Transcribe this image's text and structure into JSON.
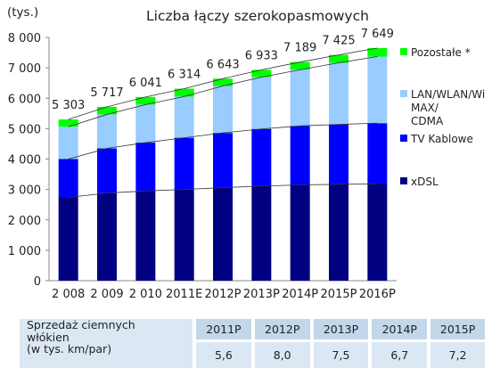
{
  "chart_data": {
    "type": "bar",
    "title": "Liczba łączy szerokopasmowych",
    "ylabel": "(tys.)",
    "ylim": [
      0,
      8000
    ],
    "yticks": [
      "0",
      "1 000",
      "2 000",
      "3 000",
      "4 000",
      "5 000",
      "6 000",
      "7 000",
      "8 000"
    ],
    "categories": [
      "2 008",
      "2 009",
      "2 010",
      "2011E",
      "2012P",
      "2013P",
      "2014P",
      "2015P",
      "2016P"
    ],
    "totals": [
      5303,
      5717,
      6041,
      6314,
      6643,
      6933,
      7189,
      7425,
      7649
    ],
    "total_labels": [
      "5 303",
      "5 717",
      "6 041",
      "6 314",
      "6 643",
      "6 933",
      "7 189",
      "7 425",
      "7 649"
    ],
    "series": [
      {
        "name": "xDSL",
        "color": "#000080",
        "values": [
          2740,
          2880,
          2950,
          3000,
          3060,
          3110,
          3150,
          3170,
          3180
        ]
      },
      {
        "name": "TV Kablowe",
        "color": "#0000ff",
        "values": [
          1260,
          1470,
          1590,
          1700,
          1800,
          1880,
          1940,
          1970,
          2000
        ]
      },
      {
        "name": "LAN/WLAN/Wi MAX/ CDMA",
        "color": "#99ccff",
        "values": [
          1063,
          1117,
          1251,
          1354,
          1543,
          1703,
          1849,
          2025,
          2189
        ]
      },
      {
        "name": "Pozostałe *",
        "color": "#00ff00",
        "values": [
          240,
          250,
          250,
          260,
          240,
          240,
          250,
          260,
          280
        ]
      }
    ],
    "legend": [
      {
        "lines": [
          "Pozostałe *"
        ],
        "color": "#00ff00"
      },
      {
        "lines": [
          "LAN/WLAN/Wi",
          "MAX/",
          "CDMA"
        ],
        "color": "#99ccff"
      },
      {
        "lines": [
          "TV Kablowe"
        ],
        "color": "#0000ff"
      },
      {
        "lines": [
          "xDSL"
        ],
        "color": "#000080"
      }
    ],
    "grid": false,
    "legend_position": "right"
  },
  "table": {
    "description_lines": [
      "Sprzedaż ciemnych",
      "włókien",
      "(w tys. km/par)"
    ],
    "years": [
      "2011P",
      "2012P",
      "2013P",
      "2014P",
      "2015P"
    ],
    "values": [
      "5,6",
      "8,0",
      "7,5",
      "6,7",
      "7,2"
    ]
  }
}
